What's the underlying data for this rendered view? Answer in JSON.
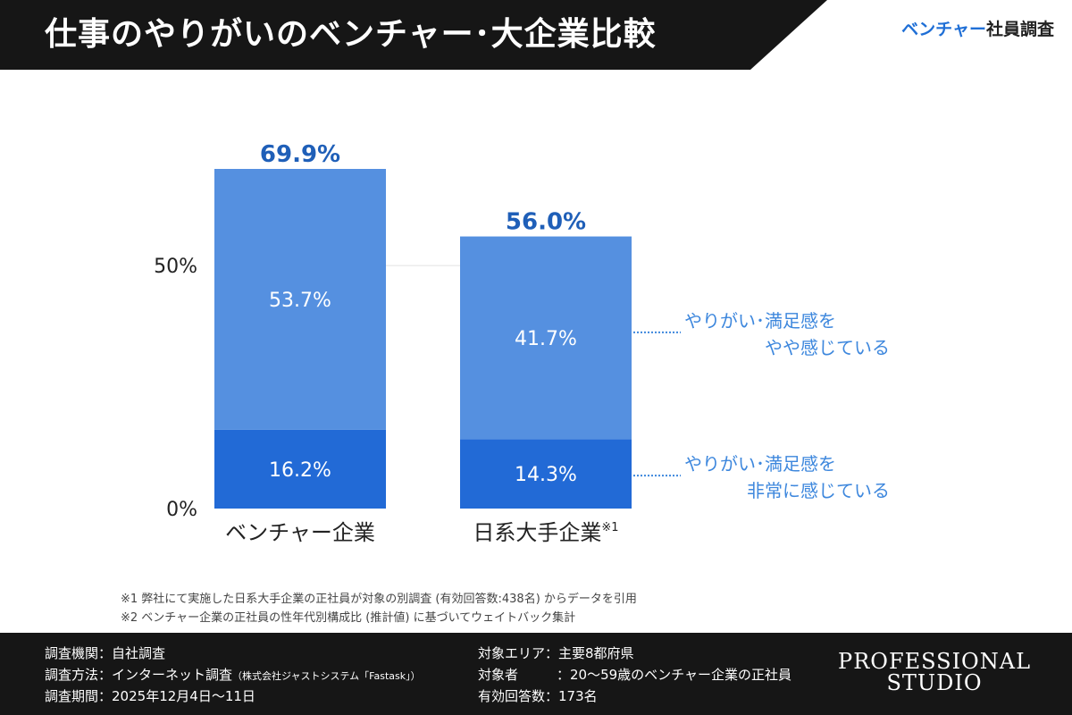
{
  "header": {
    "title": "仕事のやりがいのベンチャー･大企業比較",
    "tag_accent": "ベンチャー",
    "tag_rest": "社員調査"
  },
  "chart_data": {
    "type": "bar",
    "stacked": true,
    "categories": [
      "ベンチャー企業",
      "日系大手企業"
    ],
    "category_superscripts": [
      "",
      "※1"
    ],
    "series": [
      {
        "name": "やりがい･満足感を 非常に感じている",
        "values": [
          16.2,
          14.3
        ],
        "color": "#226ad6"
      },
      {
        "name": "やりがい･満足感を やや感じている",
        "values": [
          53.7,
          41.7
        ],
        "color": "#5590e0"
      }
    ],
    "totals": [
      69.9,
      56.0
    ],
    "total_labels": [
      "69.9%",
      "56.0%"
    ],
    "segment_labels": [
      [
        "16.2%",
        "53.7%"
      ],
      [
        "14.3%",
        "41.7%"
      ]
    ],
    "y_ticks": [
      0,
      50
    ],
    "y_tick_labels": [
      "0%",
      "50%"
    ],
    "ylim": [
      0,
      69.9
    ],
    "annotations": [
      {
        "series": 1,
        "lines": [
          "やりがい･満足感を",
          "やや感じている"
        ]
      },
      {
        "series": 0,
        "lines": [
          "やりがい･満足感を",
          "非常に感じている"
        ]
      }
    ],
    "total_color": "#1f5fb8",
    "annotation_color": "#3d87dd"
  },
  "footnotes": [
    "※1  弊社にて実施した日系大手企業の正社員が対象の別調査 (有効回答数:438名) からデータを引用",
    "※2  ベンチャー企業の正社員の性年代別構成比 (推計値) に基づいてウェイトバック集計"
  ],
  "footer": {
    "left": [
      {
        "key": "調査機関：",
        "value": "自社調査",
        "note": ""
      },
      {
        "key": "調査方法：",
        "value": "インターネット調査",
        "note": "（株式会社ジャストシステム「Fastask」）"
      },
      {
        "key": "調査期間：",
        "value": "2025年12月4日〜11日",
        "note": ""
      }
    ],
    "right": [
      {
        "key": "対象エリア：",
        "value": "主要8都府県"
      },
      {
        "key": "対象者",
        "value": "：20〜59歳のベンチャー企業の正社員"
      },
      {
        "key": "有効回答数：",
        "value": "173名"
      }
    ],
    "brand_line1": "PROFESSIONAL",
    "brand_line2": "STUDIO"
  }
}
